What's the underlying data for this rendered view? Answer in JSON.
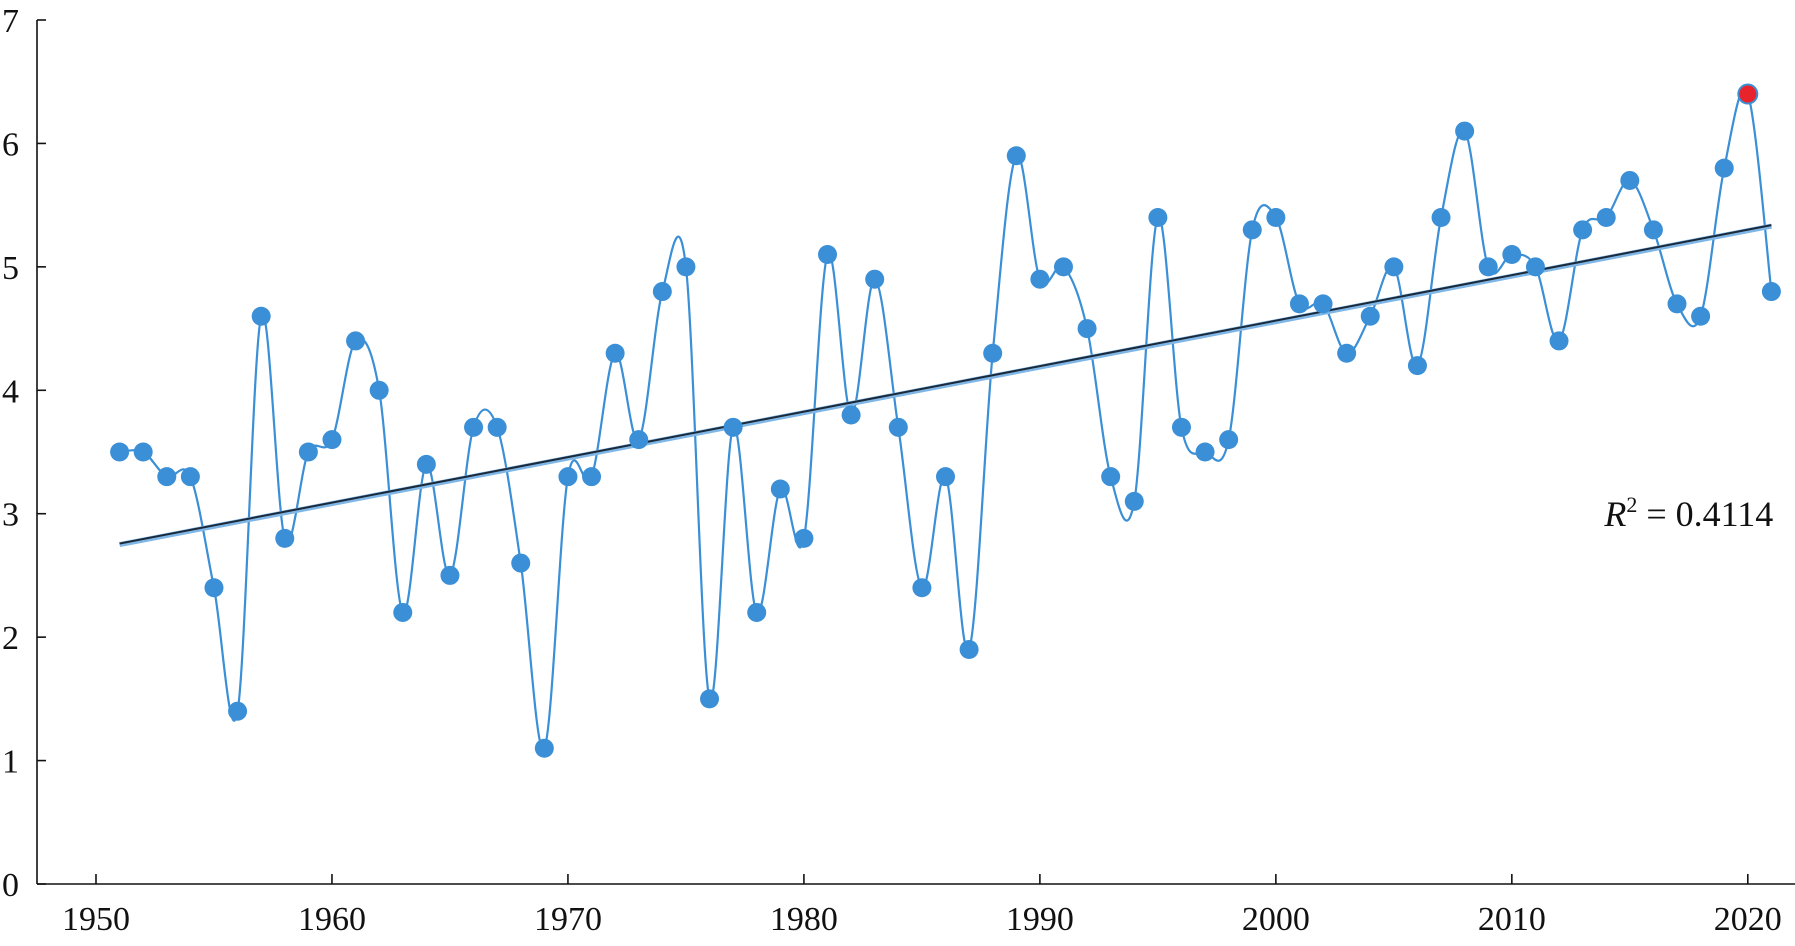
{
  "chart_data": {
    "type": "line",
    "title": "",
    "xlabel": "",
    "ylabel": "",
    "xlim": [
      1947.5,
      2022
    ],
    "ylim": [
      0,
      7
    ],
    "x_ticks": [
      1950,
      1960,
      1970,
      1980,
      1990,
      2000,
      2010,
      2020
    ],
    "y_ticks": [
      0,
      1,
      2,
      3,
      4,
      5,
      6,
      7
    ],
    "grid": false,
    "series": [
      {
        "color": "#3b8fd6",
        "marker": "circle",
        "smooth": true,
        "x": [
          1951,
          1952,
          1953,
          1954,
          1955,
          1956,
          1957,
          1958,
          1959,
          1960,
          1961,
          1962,
          1963,
          1964,
          1965,
          1966,
          1967,
          1968,
          1969,
          1970,
          1971,
          1972,
          1973,
          1974,
          1975,
          1976,
          1977,
          1978,
          1979,
          1980,
          1981,
          1982,
          1983,
          1984,
          1985,
          1986,
          1987,
          1988,
          1989,
          1990,
          1991,
          1992,
          1993,
          1994,
          1995,
          1996,
          1997,
          1998,
          1999,
          2000,
          2001,
          2002,
          2003,
          2004,
          2005,
          2006,
          2007,
          2008,
          2009,
          2010,
          2011,
          2012,
          2013,
          2014,
          2015,
          2016,
          2017,
          2018,
          2019,
          2020,
          2021
        ],
        "y": [
          3.5,
          3.5,
          3.3,
          3.3,
          2.4,
          1.4,
          4.6,
          2.8,
          3.5,
          3.6,
          4.4,
          4.0,
          2.2,
          3.4,
          2.5,
          3.7,
          3.7,
          2.6,
          1.1,
          3.3,
          3.3,
          4.3,
          3.6,
          4.8,
          5.0,
          1.5,
          3.7,
          2.2,
          3.2,
          2.8,
          5.1,
          3.8,
          4.9,
          3.7,
          2.4,
          3.3,
          1.9,
          4.3,
          5.9,
          4.9,
          5.0,
          4.5,
          3.3,
          3.1,
          5.4,
          3.7,
          3.5,
          3.6,
          5.3,
          5.4,
          4.7,
          4.7,
          4.3,
          4.6,
          5.0,
          4.2,
          5.4,
          6.1,
          5.0,
          5.1,
          5.0,
          4.4,
          5.3,
          5.4,
          5.7,
          5.3,
          4.7,
          4.6,
          5.8,
          6.4,
          4.8
        ],
        "highlight": {
          "x": 2020,
          "y": 6.4,
          "color": "#e8242a"
        }
      }
    ],
    "trendline": {
      "color": "#1a2a3a",
      "start": {
        "x": 1951,
        "y": 2.75
      },
      "end": {
        "x": 2021,
        "y": 5.33
      }
    },
    "annotation": {
      "r_symbol": "R",
      "exponent": "2",
      "equals_text": " = 0.4114",
      "x": 2017.5,
      "y": 2.9
    }
  }
}
